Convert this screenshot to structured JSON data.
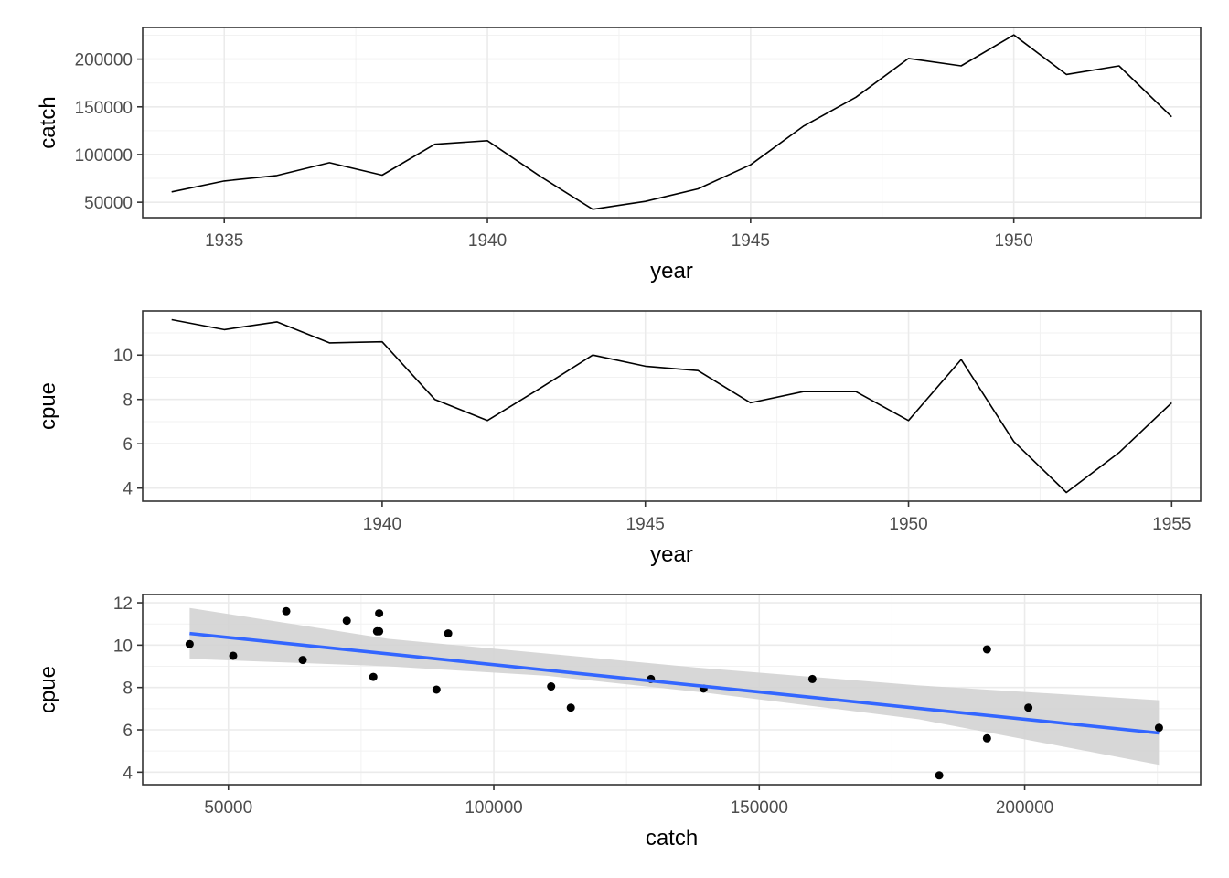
{
  "chart_data": [
    {
      "type": "line",
      "xlabel": "year",
      "ylabel": "catch",
      "xlim": [
        1933.45,
        1953.55
      ],
      "ylim": [
        33850,
        233150
      ],
      "x_ticks": [
        1935,
        1940,
        1945,
        1950
      ],
      "y_ticks": [
        50000,
        100000,
        150000,
        200000
      ],
      "grid": true,
      "series": [
        {
          "x": [
            1934,
            1935,
            1936,
            1937,
            1938,
            1939,
            1940,
            1941,
            1942,
            1943,
            1944,
            1945,
            1946,
            1947,
            1948,
            1949,
            1950,
            1951,
            1952,
            1953
          ],
          "y": [
            60900,
            72300,
            78000,
            91400,
            78400,
            110800,
            114500,
            77300,
            42700,
            50900,
            64000,
            89200,
            129600,
            160000,
            200700,
            192900,
            225300,
            183900,
            192900,
            139500
          ]
        }
      ]
    },
    {
      "type": "line",
      "xlabel": "year",
      "ylabel": "cpue",
      "xlim": [
        1935.45,
        1955.55
      ],
      "ylim": [
        3.41,
        11.99
      ],
      "x_ticks": [
        1940,
        1945,
        1950,
        1955
      ],
      "y_ticks": [
        4,
        6,
        8,
        10
      ],
      "grid": true,
      "series": [
        {
          "x": [
            1936,
            1937,
            1938,
            1939,
            1940,
            1941,
            1942,
            1943,
            1944,
            1945,
            1946,
            1947,
            1948,
            1949,
            1950,
            1951,
            1952,
            1953,
            1954,
            1955
          ],
          "y": [
            11.6,
            11.15,
            11.5,
            10.55,
            10.6,
            8.0,
            7.05,
            8.5,
            10.0,
            9.5,
            9.3,
            7.85,
            8.35,
            8.35,
            7.05,
            9.8,
            6.1,
            3.8,
            5.6,
            7.85
          ]
        }
      ]
    },
    {
      "type": "scatter",
      "xlabel": "catch",
      "ylabel": "cpue",
      "xlim": [
        33850,
        233150
      ],
      "ylim": [
        3.41,
        12.39
      ],
      "x_ticks": [
        50000,
        100000,
        150000,
        200000
      ],
      "y_ticks": [
        4,
        6,
        8,
        10,
        12
      ],
      "grid": true,
      "points": {
        "x": [
          42700,
          50900,
          60900,
          64000,
          72300,
          77300,
          78000,
          78400,
          78400,
          89200,
          91400,
          110800,
          114500,
          129600,
          139500,
          160000,
          183900,
          192900,
          192900,
          200700,
          225300
        ],
        "y": [
          10.05,
          9.5,
          11.6,
          9.3,
          11.15,
          8.5,
          10.65,
          11.5,
          10.65,
          7.9,
          10.55,
          8.05,
          7.05,
          8.4,
          7.95,
          8.4,
          3.85,
          9.8,
          5.6,
          7.05,
          6.1
        ]
      },
      "fit_line": {
        "x": [
          42700,
          225300
        ],
        "y": [
          10.55,
          5.85
        ]
      },
      "confidence_band": {
        "x": [
          42700,
          80000,
          110000,
          140000,
          180000,
          225300
        ],
        "lower": [
          9.35,
          9.0,
          8.55,
          7.75,
          6.5,
          4.35
        ],
        "upper": [
          11.75,
          10.3,
          9.6,
          8.9,
          8.1,
          7.4
        ]
      },
      "colors": {
        "points": "#000000",
        "fit_line": "#3366FF",
        "band": "#D3D3D3"
      }
    }
  ]
}
